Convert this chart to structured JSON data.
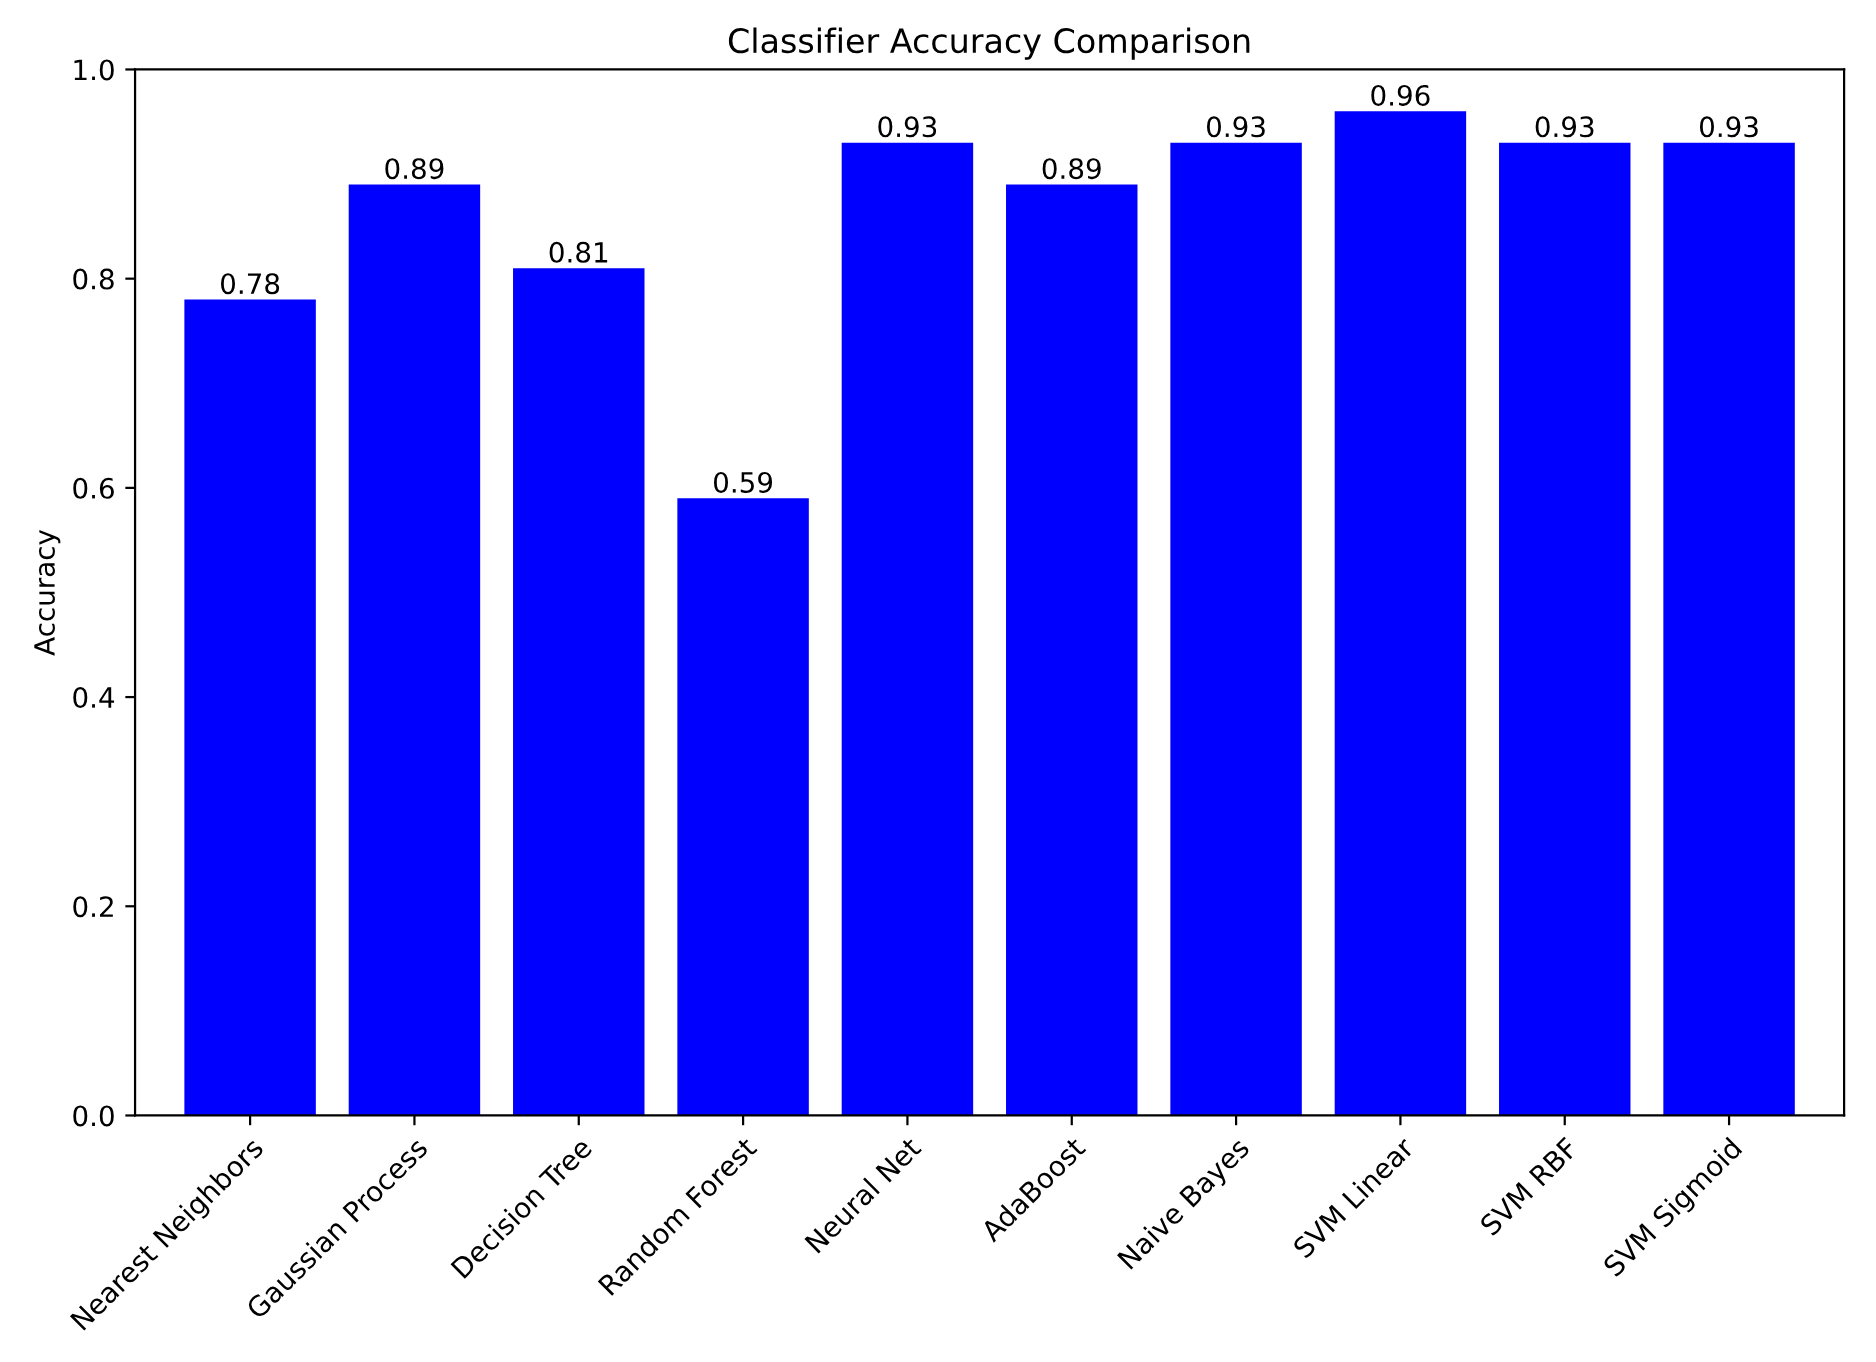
{
  "chart_data": {
    "type": "bar",
    "title": "Classifier Accuracy Comparison",
    "ylabel": "Accuracy",
    "categories": [
      "Nearest Neighbors",
      "Gaussian Process",
      "Decision Tree",
      "Random Forest",
      "Neural Net",
      "AdaBoost",
      "Naive Bayes",
      "SVM Linear",
      "SVM RBF",
      "SVM Sigmoid"
    ],
    "values": [
      0.78,
      0.89,
      0.81,
      0.59,
      0.93,
      0.89,
      0.93,
      0.96,
      0.93,
      0.93
    ],
    "color": "#0000ff",
    "ylim": [
      0,
      1
    ],
    "yticks": [
      {
        "value": 0,
        "label": "0.0"
      },
      {
        "value": 0.2,
        "label": "0.2"
      },
      {
        "value": 0.4,
        "label": "0.4"
      },
      {
        "value": 0.6,
        "label": "0.6"
      },
      {
        "value": 0.8,
        "label": "0.8"
      },
      {
        "value": 1,
        "label": "1.0"
      }
    ],
    "data_labels": true
  }
}
